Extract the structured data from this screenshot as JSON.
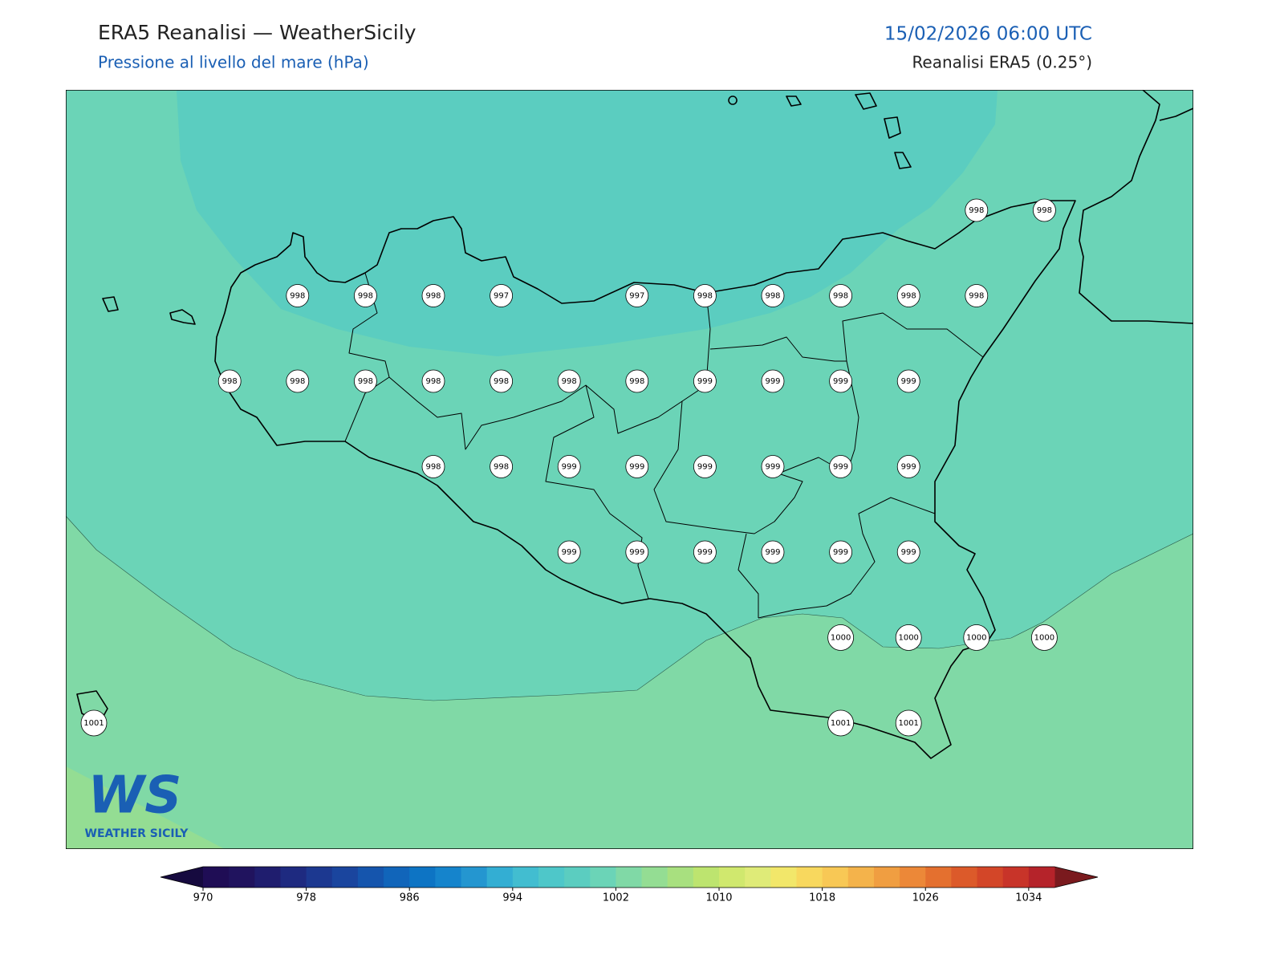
{
  "header": {
    "title": "ERA5 Reanalisi — WeatherSicily",
    "subtitle": "Pressione al livello del mare (hPa)",
    "datetime": "15/02/2026 06:00 UTC",
    "source": "Reanalisi ERA5 (0.25°)"
  },
  "pressure_grid": {
    "rows": [
      [
        null,
        null,
        null,
        null,
        null,
        null,
        null,
        null,
        null,
        null,
        null,
        null,
        null,
        998,
        998
      ],
      [
        null,
        null,
        null,
        998,
        998,
        998,
        997,
        null,
        997,
        998,
        998,
        998,
        998,
        998,
        null
      ],
      [
        null,
        null,
        998,
        998,
        998,
        998,
        998,
        998,
        998,
        999,
        999,
        999,
        999,
        null,
        null
      ],
      [
        null,
        null,
        null,
        null,
        null,
        998,
        998,
        999,
        999,
        999,
        999,
        999,
        999,
        null,
        null
      ],
      [
        null,
        null,
        null,
        null,
        null,
        null,
        null,
        999,
        999,
        999,
        999,
        999,
        999,
        null,
        null
      ],
      [
        null,
        null,
        null,
        null,
        null,
        null,
        null,
        null,
        null,
        null,
        null,
        1000,
        1000,
        1000,
        1000
      ],
      [
        1001,
        null,
        null,
        null,
        null,
        null,
        null,
        null,
        null,
        null,
        null,
        1001,
        1001,
        null,
        null
      ]
    ]
  },
  "colorbar": {
    "range": [
      970,
      1036
    ],
    "ticks": [
      970,
      978,
      986,
      994,
      1002,
      1010,
      1018,
      1026,
      1034
    ],
    "under_color": "#160a3f",
    "over_color": "#7a1a1e",
    "colors": [
      "#1f0d55",
      "#20135e",
      "#1f1d6e",
      "#1e2a80",
      "#1c3890",
      "#1a459e",
      "#1555ad",
      "#1165ba",
      "#0d74c4",
      "#1584cc",
      "#2496d0",
      "#33aed3",
      "#42bdd0",
      "#4ec7c9",
      "#5bcdc0",
      "#6bd4b7",
      "#80d9a6",
      "#94dd93",
      "#a8e07f",
      "#bde46f",
      "#d0e86e",
      "#dfeb78",
      "#f2e76a",
      "#f8d85e",
      "#f8c855",
      "#f4b34b",
      "#f09e41",
      "#ec8838",
      "#e4702f",
      "#dc5a2a",
      "#d34628",
      "#c83429",
      "#b5232a"
    ]
  },
  "logo": {
    "mark": "WS",
    "name": "WEATHER SICILY"
  }
}
